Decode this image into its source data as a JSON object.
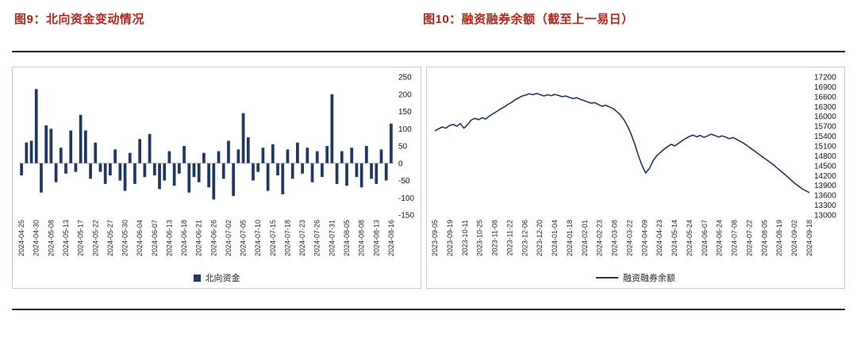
{
  "figure9": {
    "title": "图9：北向资金变动情况"
  },
  "figure10": {
    "title": "图10：融资融券余额（截至上一易日）"
  },
  "title_color": "#b0261c",
  "chart_data": [
    {
      "type": "bar",
      "name": "northbound-funds",
      "legend": "北向资金",
      "color": "#1f3864",
      "ylim": [
        -150,
        250
      ],
      "yticks": [
        250,
        200,
        150,
        100,
        50,
        0,
        -50,
        -100,
        -150
      ],
      "label_every": 3,
      "x_tick_labels": [
        "2024-04-25",
        "2024-04-30",
        "2024-05-08",
        "2024-05-13",
        "2024-05-17",
        "2024-05-22",
        "2024-05-27",
        "2024-05-30",
        "2024-06-04",
        "2024-06-07",
        "2024-06-13",
        "2024-06-18",
        "2024-06-21",
        "2024-06-26",
        "2024-07-02",
        "2024-07-05",
        "2024-07-10",
        "2024-07-15",
        "2024-07-18",
        "2024-07-23",
        "2024-07-26",
        "2024-07-31",
        "2024-08-05",
        "2024-08-08",
        "2024-08-13",
        "2024-08-16"
      ],
      "values": [
        -35,
        60,
        65,
        215,
        -85,
        110,
        100,
        -55,
        45,
        -30,
        95,
        -25,
        140,
        95,
        -45,
        60,
        -25,
        -60,
        -35,
        40,
        -50,
        -80,
        30,
        -60,
        70,
        -40,
        85,
        -35,
        -75,
        -50,
        35,
        -65,
        -30,
        50,
        -85,
        -40,
        -55,
        30,
        -70,
        -105,
        35,
        -45,
        65,
        -95,
        40,
        145,
        75,
        -50,
        -25,
        45,
        -80,
        55,
        -35,
        -90,
        40,
        -45,
        60,
        -30,
        45,
        -55,
        35,
        -40,
        50,
        200,
        -60,
        35,
        -65,
        45,
        -40,
        -70,
        50,
        -45,
        -60,
        40,
        -50,
        115
      ]
    },
    {
      "type": "line",
      "name": "margin-balance",
      "legend": "融资融券余额",
      "color": "#1f3864",
      "ylim": [
        13000,
        17200
      ],
      "yticks": [
        17200,
        16900,
        16600,
        16300,
        16000,
        15700,
        15400,
        15100,
        14800,
        14500,
        14200,
        13900,
        13600,
        13300,
        13000
      ],
      "x_tick_labels": [
        "2023-09-05",
        "2023-09-19",
        "2023-10-11",
        "2023-10-25",
        "2023-11-08",
        "2023-11-22",
        "2023-12-06",
        "2023-12-20",
        "2024-01-04",
        "2024-01-18",
        "2024-02-01",
        "2024-02-23",
        "2024-03-08",
        "2024-03-22",
        "2024-04-09",
        "2024-04-23",
        "2024-05-14",
        "2024-05-24",
        "2024-06-07",
        "2024-06-24",
        "2024-07-08",
        "2024-07-22",
        "2024-08-05",
        "2024-08-19",
        "2024-09-02",
        "2024-09-18"
      ],
      "values": [
        15560,
        15620,
        15680,
        15640,
        15720,
        15760,
        15700,
        15780,
        15640,
        15750,
        15890,
        15940,
        15900,
        15960,
        15920,
        16010,
        16080,
        16150,
        16220,
        16280,
        16360,
        16420,
        16500,
        16560,
        16620,
        16650,
        16690,
        16660,
        16700,
        16660,
        16620,
        16660,
        16630,
        16670,
        16640,
        16600,
        16620,
        16580,
        16540,
        16570,
        16520,
        16480,
        16440,
        16400,
        16420,
        16360,
        16310,
        16340,
        16290,
        16240,
        16150,
        16050,
        15900,
        15700,
        15450,
        15150,
        14800,
        14500,
        14280,
        14420,
        14650,
        14800,
        14900,
        15000,
        15080,
        15150,
        15100,
        15180,
        15260,
        15330,
        15390,
        15430,
        15380,
        15420,
        15360,
        15410,
        15460,
        15420,
        15370,
        15410,
        15370,
        15320,
        15360,
        15300,
        15240,
        15180,
        15100,
        15020,
        14940,
        14860,
        14780,
        14700,
        14620,
        14540,
        14440,
        14350,
        14260,
        14160,
        14060,
        13960,
        13880,
        13800,
        13740,
        13680
      ]
    }
  ]
}
